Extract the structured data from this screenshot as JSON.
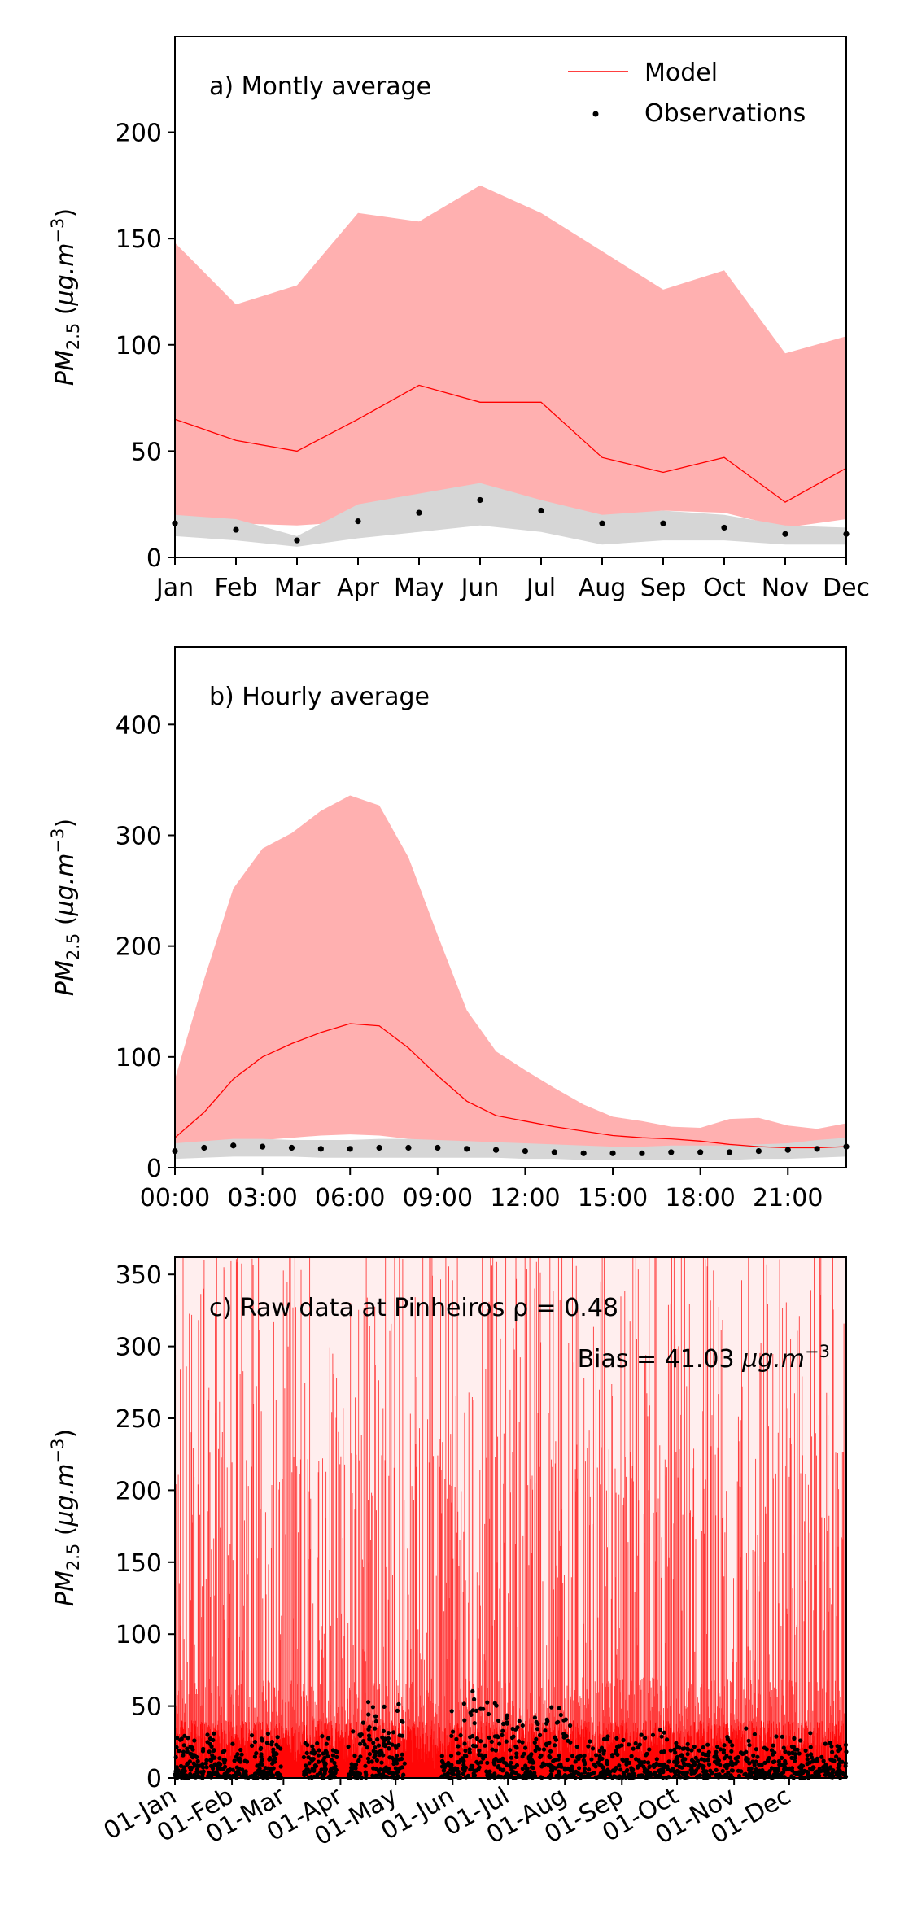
{
  "chart_data": [
    {
      "type": "line",
      "panel_label": "a) Montly average",
      "xlabel": "",
      "ylabel": "PM2.5 (µg.m−3)",
      "ylabel_parts": {
        "base": "PM",
        "sub": "2.5",
        "unit_open": " (",
        "unit": "µg.m",
        "unit_sup": "−3",
        "unit_close": ")"
      },
      "categories": [
        "Jan",
        "Feb",
        "Mar",
        "Apr",
        "May",
        "Jun",
        "Jul",
        "Aug",
        "Sep",
        "Oct",
        "Nov",
        "Dec"
      ],
      "ylim": [
        0,
        245
      ],
      "yticks": [
        0,
        50,
        100,
        150,
        200
      ],
      "legend": {
        "position": "top-right",
        "model_label": "Model",
        "obs_label": "Observations"
      },
      "colors": {
        "model": "#ff0000",
        "model_band": "#ffb0b0",
        "obs": "#000000",
        "obs_band": "#d6d6d6"
      },
      "series": [
        {
          "name": "Model",
          "kind": "line",
          "values": [
            65,
            55,
            50,
            65,
            81,
            73,
            73,
            47,
            40,
            47,
            26,
            42
          ],
          "band_low": [
            16,
            16,
            15,
            17,
            19,
            17,
            17,
            19,
            22,
            21,
            14,
            18
          ],
          "band_high": [
            148,
            119,
            128,
            162,
            158,
            175,
            162,
            144,
            126,
            135,
            96,
            104
          ]
        },
        {
          "name": "Observations",
          "kind": "points",
          "values": [
            16,
            13,
            8,
            17,
            21,
            27,
            22,
            16,
            16,
            14,
            11,
            11
          ],
          "band_low": [
            10,
            8,
            5,
            9,
            12,
            15,
            12,
            6,
            8,
            8,
            6,
            6
          ],
          "band_high": [
            20,
            18,
            10,
            25,
            30,
            35,
            27,
            20,
            22,
            20,
            15,
            14
          ]
        }
      ]
    },
    {
      "type": "line",
      "panel_label": "b) Hourly average",
      "xlabel": "",
      "ylabel": "PM2.5 (µg.m−3)",
      "ylabel_parts": {
        "base": "PM",
        "sub": "2.5",
        "unit_open": " (",
        "unit": "µg.m",
        "unit_sup": "−3",
        "unit_close": ")"
      },
      "x": [
        0,
        1,
        2,
        3,
        4,
        5,
        6,
        7,
        8,
        9,
        10,
        11,
        12,
        13,
        14,
        15,
        16,
        17,
        18,
        19,
        20,
        21,
        22,
        23
      ],
      "xticks": [
        0,
        3,
        6,
        9,
        12,
        15,
        18,
        21
      ],
      "xtick_labels": [
        "00:00",
        "03:00",
        "06:00",
        "09:00",
        "12:00",
        "15:00",
        "18:00",
        "21:00"
      ],
      "ylim": [
        0,
        470
      ],
      "yticks": [
        0,
        100,
        200,
        300,
        400
      ],
      "colors": {
        "model": "#ff0000",
        "model_band": "#ffb0b0",
        "obs": "#000000",
        "obs_band": "#d6d6d6"
      },
      "series": [
        {
          "name": "Model",
          "kind": "line",
          "values": [
            27,
            50,
            80,
            100,
            112,
            122,
            130,
            128,
            108,
            83,
            60,
            47,
            42,
            37,
            33,
            29,
            27,
            26,
            24,
            21,
            19,
            18,
            18,
            19
          ],
          "band_low": [
            15,
            18,
            22,
            25,
            27,
            29,
            30,
            29,
            26,
            23,
            21,
            19,
            17,
            15,
            14,
            13,
            13,
            12,
            12,
            12,
            12,
            12,
            12,
            12
          ],
          "band_high": [
            80,
            170,
            252,
            288,
            302,
            322,
            336,
            327,
            280,
            210,
            142,
            105,
            88,
            72,
            57,
            46,
            42,
            37,
            36,
            44,
            45,
            38,
            35,
            40
          ]
        },
        {
          "name": "Observations",
          "kind": "points",
          "values": [
            15,
            18,
            20,
            19,
            18,
            17,
            17,
            18,
            18,
            18,
            17,
            16,
            15,
            14,
            13,
            13,
            13,
            14,
            14,
            14,
            15,
            16,
            17,
            19
          ],
          "band_low": [
            8,
            9,
            10,
            10,
            10,
            9,
            9,
            9,
            9,
            9,
            9,
            9,
            8,
            8,
            7,
            7,
            7,
            7,
            7,
            7,
            8,
            8,
            9,
            10
          ],
          "band_high": [
            22,
            24,
            26,
            26,
            25,
            25,
            25,
            26,
            26,
            25,
            24,
            23,
            22,
            21,
            20,
            19,
            19,
            20,
            20,
            20,
            21,
            22,
            25,
            27
          ]
        }
      ]
    },
    {
      "type": "line",
      "panel_label": "c) Raw data at Pinheiros ρ = 0.48",
      "bias_label": "Bias = 41.03 ",
      "bias_unit": "µg.m",
      "bias_unit_sup": "−3",
      "xlabel": "",
      "ylabel": "PM2.5 (µg.m−3)",
      "ylabel_parts": {
        "base": "PM",
        "sub": "2.5",
        "unit_open": " (",
        "unit": "µg.m",
        "unit_sup": "−3",
        "unit_close": ")"
      },
      "xtick_labels": [
        "01-Jan",
        "01-Feb",
        "01-Mar",
        "01-Apr",
        "01-May",
        "01-Jun",
        "01-Jul",
        "01-Aug",
        "01-Sep",
        "01-Oct",
        "01-Nov",
        "01-Dec"
      ],
      "xtick_day_of_year": [
        0,
        31,
        59,
        90,
        120,
        151,
        181,
        212,
        243,
        273,
        304,
        334
      ],
      "xlim_days": [
        0,
        365
      ],
      "ylim": [
        0,
        362
      ],
      "yticks": [
        0,
        50,
        100,
        150,
        200,
        250,
        300,
        350
      ],
      "colors": {
        "model": "#ff0000",
        "obs": "#000000"
      },
      "series": [
        {
          "name": "Model",
          "kind": "line",
          "note": "hourly model series (dense red lines)"
        },
        {
          "name": "Observations",
          "kind": "points",
          "note": "hourly observations (dense black points)"
        }
      ]
    }
  ]
}
